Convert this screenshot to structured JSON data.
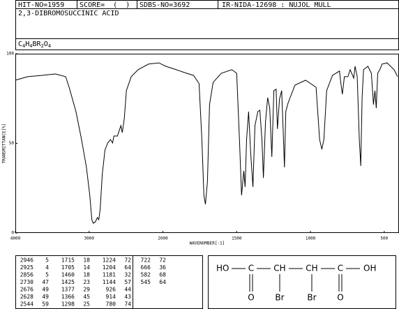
{
  "header": {
    "hit_no": "HIT-NO=1959",
    "score": "SCORE=  (  )",
    "sdbs_no": "SDBS-NO=3692",
    "ir_info": "IR-NIDA-12698 : NUJOL MULL",
    "compound": "2,3-DIBROMOSUCCINIC ACID",
    "formula": "C4H4BR2O4"
  },
  "chart_data": {
    "type": "line",
    "xlabel": "WAVENUMBER[-1]",
    "ylabel": "TRANSMITTANCE[%]",
    "color": "#000000",
    "xlim": [
      4000,
      400
    ],
    "ylim": [
      0,
      100
    ],
    "xticks": [
      4000,
      3000,
      2000,
      1500,
      1000,
      500
    ],
    "yticks": [
      0,
      50,
      100
    ],
    "x": [
      4000,
      3832,
      3645,
      3458,
      3318,
      3271,
      3178,
      3103,
      3037,
      2991,
      2963,
      2944,
      2916,
      2888,
      2869,
      2850,
      2822,
      2785,
      2748,
      2710,
      2682,
      2664,
      2617,
      2570,
      2551,
      2523,
      2495,
      2430,
      2336,
      2196,
      2056,
      1981,
      1910,
      1840,
      1792,
      1755,
      1736,
      1722,
      1712,
      1698,
      1684,
      1660,
      1604,
      1533,
      1500,
      1481,
      1467,
      1452,
      1443,
      1433,
      1419,
      1405,
      1390,
      1376,
      1357,
      1343,
      1329,
      1319,
      1305,
      1290,
      1276,
      1262,
      1248,
      1233,
      1224,
      1210,
      1195,
      1186,
      1176,
      1167,
      1152,
      1138,
      1105,
      1033,
      962,
      938,
      923,
      909,
      890,
      851,
      803,
      794,
      784,
      770,
      746,
      731,
      707,
      698,
      683,
      669,
      659,
      650,
      640,
      611,
      587,
      573,
      563,
      554,
      544,
      530,
      515,
      481,
      457,
      433,
      410
    ],
    "y": [
      85.2,
      87.2,
      87.9,
      88.7,
      87.2,
      81.3,
      67.7,
      52.1,
      36.6,
      21.0,
      7.4,
      5.4,
      6.2,
      8.6,
      7.4,
      13.2,
      32.7,
      46.3,
      50.2,
      52.1,
      50.2,
      54.1,
      54.1,
      59.9,
      56.0,
      63.8,
      79.4,
      87.2,
      91.1,
      94.2,
      94.9,
      93.0,
      91.1,
      89.1,
      87.9,
      83.3,
      52.1,
      21.0,
      16.0,
      28.8,
      71.6,
      84.0,
      89.1,
      91.1,
      89.1,
      52.1,
      21.0,
      34.6,
      25.7,
      52.1,
      67.7,
      44.4,
      25.7,
      59.9,
      67.7,
      68.5,
      52.1,
      30.7,
      61.9,
      75.5,
      69.6,
      42.4,
      79.4,
      80.2,
      58.0,
      74.7,
      79.4,
      59.9,
      36.6,
      67.7,
      72.4,
      75.5,
      82.5,
      85.2,
      81.3,
      52.1,
      46.7,
      52.1,
      79.4,
      87.9,
      90.3,
      83.3,
      77.4,
      87.2,
      87.2,
      91.1,
      86.4,
      93.0,
      87.2,
      52.1,
      37.4,
      75.5,
      91.1,
      93.0,
      89.1,
      71.6,
      79.4,
      69.6,
      89.1,
      91.1,
      94.2,
      94.9,
      93.0,
      91.1,
      87.2
    ]
  },
  "peak_table": [
    [
      2946,
      5
    ],
    [
      2925,
      4
    ],
    [
      2856,
      5
    ],
    [
      2730,
      47
    ],
    [
      2676,
      49
    ],
    [
      2628,
      49
    ],
    [
      2544,
      59
    ],
    [
      1715,
      18
    ],
    [
      1705,
      14
    ],
    [
      1460,
      18
    ],
    [
      1425,
      23
    ],
    [
      1377,
      29
    ],
    [
      1366,
      45
    ],
    [
      1298,
      25
    ],
    [
      1224,
      72
    ],
    [
      1204,
      64
    ],
    [
      1181,
      32
    ],
    [
      1144,
      57
    ],
    [
      926,
      44
    ],
    [
      914,
      43
    ],
    [
      780,
      74
    ],
    [
      722,
      72
    ],
    [
      666,
      36
    ],
    [
      582,
      68
    ],
    [
      545,
      64
    ]
  ],
  "structure": {
    "ho": "HO",
    "c1": "C",
    "ch1": "CH",
    "ch2": "CH",
    "c2": "C",
    "oh": "OH",
    "o1": "O",
    "br1": "Br",
    "br2": "Br",
    "o2": "O"
  }
}
